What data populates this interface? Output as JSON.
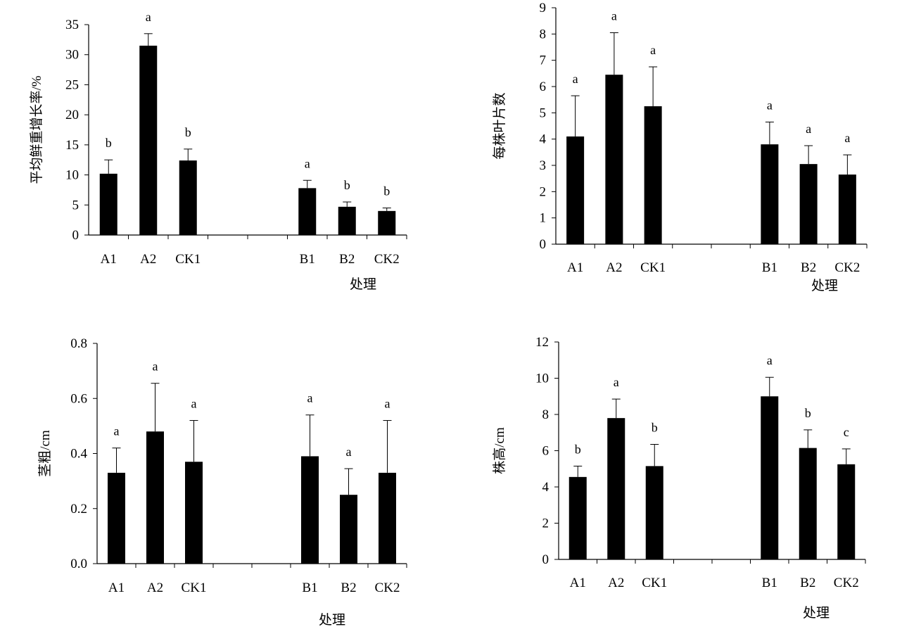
{
  "chart_data": [
    {
      "type": "bar",
      "categories": [
        "A1",
        "A2",
        "CK1",
        "",
        "",
        "B1",
        "B2",
        "CK2"
      ],
      "values": [
        10.2,
        31.5,
        12.4,
        null,
        null,
        7.8,
        4.7,
        4.0
      ],
      "errors": [
        2.3,
        2.0,
        1.9,
        null,
        null,
        1.3,
        0.8,
        0.5
      ],
      "letters": [
        "b",
        "a",
        "b",
        "",
        "",
        "a",
        "b",
        "b"
      ],
      "ylim": [
        0,
        35
      ],
      "yticks": [
        "0",
        "5",
        "10",
        "15",
        "20",
        "25",
        "30",
        "35"
      ],
      "ylabel": "平均鲜重增长率/%",
      "xlabel": "处理",
      "bar_color": "#000000"
    },
    {
      "type": "bar",
      "categories": [
        "A1",
        "A2",
        "CK1",
        "",
        "",
        "B1",
        "B2",
        "CK2"
      ],
      "values": [
        4.1,
        6.45,
        5.25,
        null,
        null,
        3.8,
        3.05,
        2.65
      ],
      "errors": [
        1.55,
        1.6,
        1.5,
        null,
        null,
        0.85,
        0.7,
        0.75
      ],
      "letters": [
        "a",
        "a",
        "a",
        "",
        "",
        "a",
        "a",
        "a"
      ],
      "ylim": [
        0,
        9
      ],
      "yticks": [
        "0",
        "1",
        "2",
        "3",
        "4",
        "5",
        "6",
        "7",
        "8",
        "9"
      ],
      "ylabel": "每株叶片数",
      "xlabel": "处理",
      "bar_color": "#000000"
    },
    {
      "type": "bar",
      "categories": [
        "A1",
        "A2",
        "CK1",
        "",
        "",
        "B1",
        "B2",
        "CK2"
      ],
      "values": [
        0.33,
        0.48,
        0.37,
        null,
        null,
        0.39,
        0.25,
        0.33
      ],
      "errors": [
        0.09,
        0.175,
        0.15,
        null,
        null,
        0.15,
        0.095,
        0.19
      ],
      "letters": [
        "a",
        "a",
        "a",
        "",
        "",
        "a",
        "a",
        "a"
      ],
      "ylim": [
        0,
        0.8
      ],
      "yticks": [
        "0.0",
        "0.2",
        "0.4",
        "0.6",
        "0.8"
      ],
      "ylabel": "茎粗/cm",
      "xlabel": "处理",
      "bar_color": "#000000"
    },
    {
      "type": "bar",
      "categories": [
        "A1",
        "A2",
        "CK1",
        "",
        "",
        "B1",
        "B2",
        "CK2"
      ],
      "values": [
        4.55,
        7.8,
        5.15,
        null,
        null,
        9.0,
        6.15,
        5.25
      ],
      "errors": [
        0.6,
        1.05,
        1.2,
        null,
        null,
        1.05,
        1.0,
        0.85
      ],
      "letters": [
        "b",
        "a",
        "b",
        "",
        "",
        "a",
        "b",
        "c"
      ],
      "ylim": [
        0,
        12
      ],
      "yticks": [
        "0",
        "2",
        "4",
        "6",
        "8",
        "10",
        "12"
      ],
      "ylabel": "株高/cm",
      "xlabel": "处理",
      "bar_color": "#000000"
    }
  ]
}
